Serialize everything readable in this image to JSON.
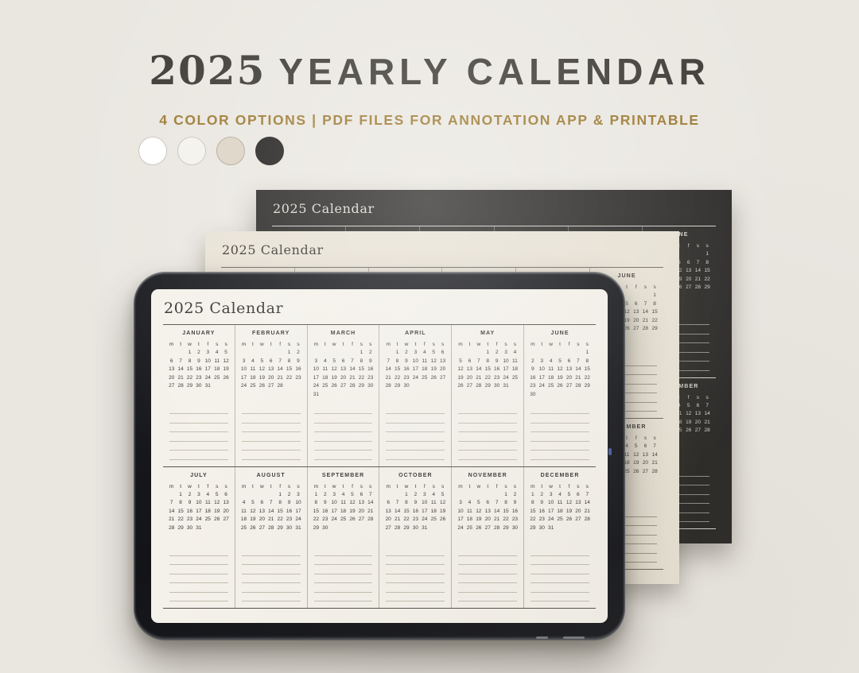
{
  "header": {
    "title_year": "2025",
    "title_rest": "YEARLY CALENDAR",
    "subtitle": "4 COLOR OPTIONS | PDF FILES FOR ANNOTATION APP & PRINTABLE",
    "swatches": [
      {
        "name": "white",
        "color": "#ffffff",
        "border": "#c9c4ba"
      },
      {
        "name": "ivory",
        "color": "#f3f2ec",
        "border": "#c9c4ba"
      },
      {
        "name": "beige",
        "color": "#ddd3c6",
        "border": "#b3a896"
      },
      {
        "name": "black",
        "color": "#232220",
        "border": "#232220"
      }
    ]
  },
  "colors": {
    "background": "#eae7e1",
    "accent_gold": "#9d7a33",
    "page_dark": "#2b2a28",
    "page_beige": "#e8e2d5",
    "tablet_screen": "#f4f1ea"
  },
  "calendar": {
    "title": "2025 Calendar",
    "weekdays": [
      "m",
      "t",
      "w",
      "t",
      "f",
      "s",
      "s"
    ],
    "note_lines_per_month": 6,
    "months": [
      {
        "name": "JANUARY",
        "rows": [
          [
            "",
            "",
            "1",
            "2",
            "3",
            "4",
            "5"
          ],
          [
            "6",
            "7",
            "8",
            "9",
            "10",
            "11",
            "12"
          ],
          [
            "13",
            "14",
            "15",
            "16",
            "17",
            "18",
            "19"
          ],
          [
            "20",
            "21",
            "22",
            "23",
            "24",
            "25",
            "26"
          ],
          [
            "27",
            "28",
            "29",
            "30",
            "31",
            "",
            ""
          ],
          [
            "",
            "",
            "",
            "",
            "",
            "",
            ""
          ]
        ]
      },
      {
        "name": "FEBRUARY",
        "rows": [
          [
            "",
            "",
            "",
            "",
            "",
            "1",
            "2"
          ],
          [
            "3",
            "4",
            "5",
            "6",
            "7",
            "8",
            "9"
          ],
          [
            "10",
            "11",
            "12",
            "13",
            "14",
            "15",
            "16"
          ],
          [
            "17",
            "18",
            "19",
            "20",
            "21",
            "22",
            "23"
          ],
          [
            "24",
            "25",
            "26",
            "27",
            "28",
            "",
            ""
          ],
          [
            "",
            "",
            "",
            "",
            "",
            "",
            ""
          ]
        ]
      },
      {
        "name": "MARCH",
        "rows": [
          [
            "",
            "",
            "",
            "",
            "",
            "1",
            "2"
          ],
          [
            "3",
            "4",
            "5",
            "6",
            "7",
            "8",
            "9"
          ],
          [
            "10",
            "11",
            "12",
            "13",
            "14",
            "15",
            "16"
          ],
          [
            "17",
            "18",
            "19",
            "20",
            "21",
            "22",
            "23"
          ],
          [
            "24",
            "25",
            "26",
            "27",
            "28",
            "29",
            "30"
          ],
          [
            "31",
            "",
            "",
            "",
            "",
            "",
            ""
          ]
        ]
      },
      {
        "name": "APRIL",
        "rows": [
          [
            "",
            "1",
            "2",
            "3",
            "4",
            "5",
            "6"
          ],
          [
            "7",
            "8",
            "9",
            "10",
            "11",
            "12",
            "13"
          ],
          [
            "14",
            "15",
            "16",
            "17",
            "18",
            "19",
            "20"
          ],
          [
            "21",
            "22",
            "23",
            "24",
            "25",
            "26",
            "27"
          ],
          [
            "28",
            "29",
            "30",
            "",
            "",
            "",
            ""
          ],
          [
            "",
            "",
            "",
            "",
            "",
            "",
            ""
          ]
        ]
      },
      {
        "name": "MAY",
        "rows": [
          [
            "",
            "",
            "",
            "1",
            "2",
            "3",
            "4"
          ],
          [
            "5",
            "6",
            "7",
            "8",
            "9",
            "10",
            "11"
          ],
          [
            "12",
            "13",
            "14",
            "15",
            "16",
            "17",
            "18"
          ],
          [
            "19",
            "20",
            "21",
            "22",
            "23",
            "24",
            "25"
          ],
          [
            "26",
            "27",
            "28",
            "29",
            "30",
            "31",
            ""
          ],
          [
            "",
            "",
            "",
            "",
            "",
            "",
            ""
          ]
        ]
      },
      {
        "name": "JUNE",
        "rows": [
          [
            "",
            "",
            "",
            "",
            "",
            "",
            "1"
          ],
          [
            "2",
            "3",
            "4",
            "5",
            "6",
            "7",
            "8"
          ],
          [
            "9",
            "10",
            "11",
            "12",
            "13",
            "14",
            "15"
          ],
          [
            "16",
            "17",
            "18",
            "19",
            "20",
            "21",
            "22"
          ],
          [
            "23",
            "24",
            "25",
            "26",
            "27",
            "28",
            "29"
          ],
          [
            "30",
            "",
            "",
            "",
            "",
            "",
            ""
          ]
        ]
      },
      {
        "name": "JULY",
        "rows": [
          [
            "",
            "1",
            "2",
            "3",
            "4",
            "5",
            "6"
          ],
          [
            "7",
            "8",
            "9",
            "10",
            "11",
            "12",
            "13"
          ],
          [
            "14",
            "15",
            "16",
            "17",
            "18",
            "19",
            "20"
          ],
          [
            "21",
            "22",
            "23",
            "24",
            "25",
            "26",
            "27"
          ],
          [
            "28",
            "29",
            "30",
            "31",
            "",
            "",
            ""
          ],
          [
            "",
            "",
            "",
            "",
            "",
            "",
            ""
          ]
        ]
      },
      {
        "name": "AUGUST",
        "rows": [
          [
            "",
            "",
            "",
            "",
            "1",
            "2",
            "3"
          ],
          [
            "4",
            "5",
            "6",
            "7",
            "8",
            "9",
            "10"
          ],
          [
            "11",
            "12",
            "13",
            "14",
            "15",
            "16",
            "17"
          ],
          [
            "18",
            "19",
            "20",
            "21",
            "22",
            "23",
            "24"
          ],
          [
            "25",
            "26",
            "27",
            "28",
            "29",
            "30",
            "31"
          ],
          [
            "",
            "",
            "",
            "",
            "",
            "",
            ""
          ]
        ]
      },
      {
        "name": "SEPTEMBER",
        "rows": [
          [
            "1",
            "2",
            "3",
            "4",
            "5",
            "6",
            "7"
          ],
          [
            "8",
            "9",
            "10",
            "11",
            "12",
            "13",
            "14"
          ],
          [
            "15",
            "16",
            "17",
            "18",
            "19",
            "20",
            "21"
          ],
          [
            "22",
            "23",
            "24",
            "25",
            "26",
            "27",
            "28"
          ],
          [
            "29",
            "30",
            "",
            "",
            "",
            "",
            ""
          ],
          [
            "",
            "",
            "",
            "",
            "",
            "",
            ""
          ]
        ]
      },
      {
        "name": "OCTOBER",
        "rows": [
          [
            "",
            "",
            "1",
            "2",
            "3",
            "4",
            "5"
          ],
          [
            "6",
            "7",
            "8",
            "9",
            "10",
            "11",
            "12"
          ],
          [
            "13",
            "14",
            "15",
            "16",
            "17",
            "18",
            "19"
          ],
          [
            "20",
            "21",
            "22",
            "23",
            "24",
            "25",
            "26"
          ],
          [
            "27",
            "28",
            "29",
            "30",
            "31",
            "",
            ""
          ],
          [
            "",
            "",
            "",
            "",
            "",
            "",
            ""
          ]
        ]
      },
      {
        "name": "NOVEMBER",
        "rows": [
          [
            "",
            "",
            "",
            "",
            "",
            "1",
            "2"
          ],
          [
            "3",
            "4",
            "5",
            "6",
            "7",
            "8",
            "9"
          ],
          [
            "10",
            "11",
            "12",
            "13",
            "14",
            "15",
            "16"
          ],
          [
            "17",
            "18",
            "19",
            "20",
            "21",
            "22",
            "23"
          ],
          [
            "24",
            "25",
            "26",
            "27",
            "28",
            "29",
            "30"
          ],
          [
            "",
            "",
            "",
            "",
            "",
            "",
            ""
          ]
        ]
      },
      {
        "name": "DECEMBER",
        "rows": [
          [
            "1",
            "2",
            "3",
            "4",
            "5",
            "6",
            "7"
          ],
          [
            "8",
            "9",
            "10",
            "11",
            "12",
            "13",
            "14"
          ],
          [
            "15",
            "16",
            "17",
            "18",
            "19",
            "20",
            "21"
          ],
          [
            "22",
            "23",
            "24",
            "25",
            "26",
            "27",
            "28"
          ],
          [
            "29",
            "30",
            "31",
            "",
            "",
            "",
            ""
          ],
          [
            "",
            "",
            "",
            "",
            "",
            "",
            ""
          ]
        ]
      }
    ]
  }
}
